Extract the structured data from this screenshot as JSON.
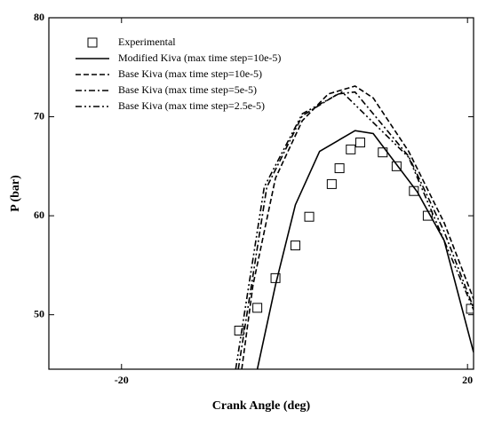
{
  "chart_data": {
    "type": "line",
    "x_label": "Crank Angle (deg)",
    "y_label": "P (bar)",
    "xlim": [
      -28.4,
      20.7
    ],
    "ylim": [
      44.5,
      80
    ],
    "xticks": [
      -20,
      20
    ],
    "yticks": [
      50,
      60,
      70,
      80
    ],
    "legend": "upper left",
    "series": [
      {
        "name": "Experimental",
        "color": "#000000",
        "style": "markers",
        "x": [
          -6.4,
          -4.3,
          -2.2,
          0.1,
          1.7,
          4.3,
          5.2,
          6.5,
          7.6,
          10.2,
          11.8,
          13.8,
          15.4,
          20.4
        ],
        "values": [
          48.4,
          50.7,
          53.7,
          57.0,
          59.9,
          63.2,
          64.8,
          66.7,
          67.4,
          66.4,
          65.0,
          62.5,
          60.0,
          50.6
        ]
      },
      {
        "name": "Modified Kiva (max time step=10e-5)",
        "color": "#000000",
        "style": "solid",
        "x": [
          -4.3,
          -2.2,
          0.1,
          2.9,
          7.0,
          9.1,
          14.2,
          17.3,
          20.7
        ],
        "values": [
          44.5,
          53.0,
          61.1,
          66.5,
          68.6,
          68.3,
          62.4,
          57.5,
          46.2
        ]
      },
      {
        "name": "Base Kiva (max time step=10e-5)",
        "color": "#000000",
        "style": "dashed",
        "x": [
          -6.1,
          -4.8,
          -2.2,
          0.9,
          3.9,
          7.0,
          9.1,
          13.2,
          17.3,
          20.7
        ],
        "values": [
          44.5,
          53.0,
          63.8,
          69.6,
          72.3,
          73.1,
          71.9,
          66.5,
          59.3,
          51.6
        ]
      },
      {
        "name": "Base Kiva (max time step=5e-5)",
        "color": "#000000",
        "style": "dashdot",
        "x": [
          -6.5,
          -3.2,
          0.9,
          5.0,
          7.0,
          13.2,
          17.3,
          20.7
        ],
        "values": [
          44.5,
          62.9,
          70.1,
          72.3,
          72.5,
          66.0,
          58.4,
          50.7
        ]
      },
      {
        "name": "Base Kiva (max time step=2.5e-5)",
        "color": "#000000",
        "style": "dashdotdot",
        "x": [
          -6.8,
          -3.5,
          0.9,
          5.5,
          13.2,
          20.7
        ],
        "values": [
          44.5,
          62.9,
          70.3,
          72.5,
          65.9,
          50.5
        ]
      }
    ]
  }
}
